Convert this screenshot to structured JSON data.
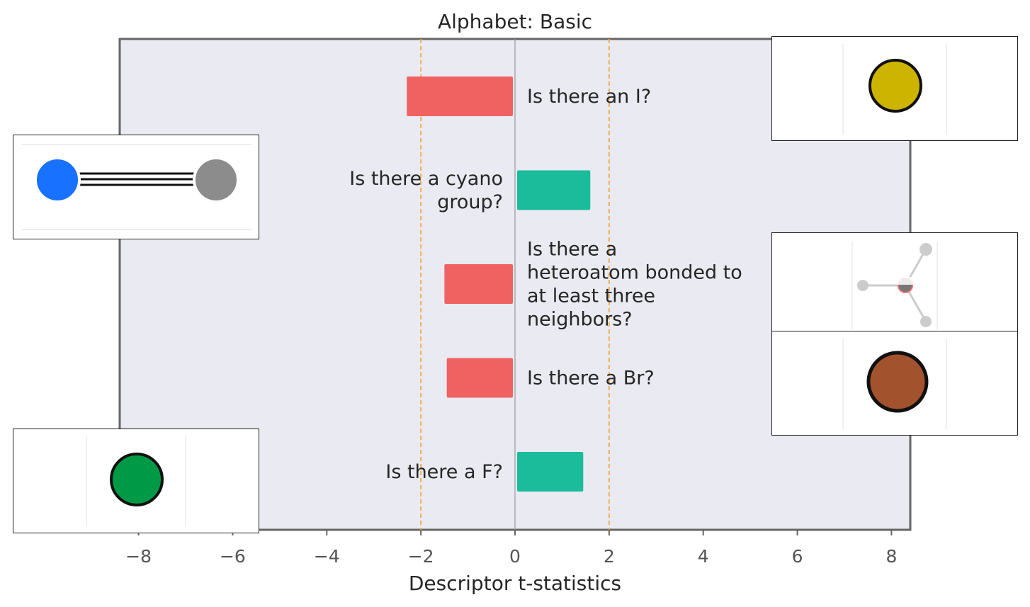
{
  "chart_data": {
    "type": "bar",
    "orientation": "horizontal",
    "title": "Alphabet: Basic",
    "xlabel": "Descriptor t-statistics",
    "xlim": [
      -8.4,
      8.4
    ],
    "xticks": [
      -8,
      -6,
      -4,
      -2,
      0,
      2,
      4,
      6,
      8
    ],
    "xtick_labels": [
      "−8",
      "−6",
      "−4",
      "−2",
      "0",
      "2",
      "4",
      "6",
      "8"
    ],
    "threshold_lines": [
      -2,
      2
    ],
    "grid": false,
    "categories": [
      "Is there an I?",
      "Is there a cyano group?",
      "Is there a heteroatom bonded to at least three neighbors?",
      "Is there a Br?",
      "Is there a F?"
    ],
    "label_lines": [
      [
        "Is there an I?"
      ],
      [
        "Is there a cyano",
        "group?"
      ],
      [
        "Is there a",
        "heteroatom bonded to",
        "at least three",
        "neighbors?"
      ],
      [
        "Is there a Br?"
      ],
      [
        "Is there a F?"
      ]
    ],
    "values": [
      -2.3,
      1.6,
      -1.5,
      -1.45,
      1.45
    ],
    "colors": {
      "negative": "#f06262",
      "positive": "#1abc9c",
      "threshold": "#f5a742",
      "zero_line": "#999999",
      "axes_bg": "#eaeaf2"
    }
  },
  "insets": [
    {
      "name": "iodine-atom",
      "side": "right",
      "atom_color": "#ccb400"
    },
    {
      "name": "cyano-group",
      "side": "left",
      "atom_colors": [
        "#1871ff",
        "#8c8c8c"
      ]
    },
    {
      "name": "heteroatom-three-neighbors",
      "side": "right",
      "atom_color": "#cccccc"
    },
    {
      "name": "bromine-atom",
      "side": "right",
      "atom_color": "#a3522e"
    },
    {
      "name": "fluorine-atom",
      "side": "left",
      "atom_color": "#009a46"
    }
  ]
}
